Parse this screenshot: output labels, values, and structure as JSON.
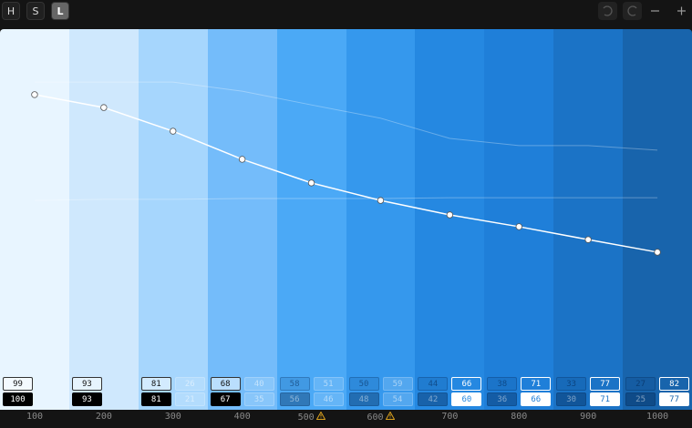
{
  "toolbar": {
    "modes": [
      "H",
      "S",
      "L"
    ],
    "active_mode": 2
  },
  "chart_data": {
    "type": "line",
    "categories": [
      "100",
      "200",
      "300",
      "400",
      "500",
      "600",
      "700",
      "800",
      "900",
      "1000"
    ],
    "colors": [
      "#e8f5ff",
      "#cfe8fd",
      "#a6d6fd",
      "#74bcfa",
      "#4ba9f6",
      "#3598ed",
      "#2588e1",
      "#1f7fd9",
      "#1b73c6",
      "#1864ac"
    ],
    "values": [
      82.8,
      79.4,
      73.2,
      65.8,
      59.6,
      55.0,
      51.2,
      48.1,
      44.7,
      41.4
    ],
    "guides": [
      [
        86.1,
        86.1,
        86.1,
        83.7,
        80.1,
        76.6,
        71.3,
        69.4,
        69.4,
        68.2
      ],
      [
        55.0,
        55.3,
        55.3,
        55.5,
        55.5,
        55.5,
        55.7,
        55.7,
        55.7,
        55.7
      ]
    ],
    "ylim": [
      0,
      100
    ],
    "warnings": [
      false,
      false,
      false,
      false,
      true,
      true,
      false,
      false,
      false,
      false
    ],
    "contrast": [
      {
        "left": [
          99,
          100
        ],
        "active": "left"
      },
      {
        "left": [
          93,
          93
        ],
        "active": "left"
      },
      {
        "left": [
          81,
          81
        ],
        "right": [
          26,
          21
        ],
        "active": "left"
      },
      {
        "left": [
          68,
          67
        ],
        "right": [
          40,
          35
        ],
        "active": "left"
      },
      {
        "left": [
          58,
          56
        ],
        "right": [
          51,
          46
        ]
      },
      {
        "left": [
          50,
          48
        ],
        "right": [
          59,
          54
        ]
      },
      {
        "left": [
          44,
          42
        ],
        "right": [
          66,
          60
        ],
        "active": "right"
      },
      {
        "left": [
          38,
          36
        ],
        "right": [
          71,
          66
        ],
        "active": "right"
      },
      {
        "left": [
          33,
          30
        ],
        "right": [
          77,
          71
        ],
        "active": "right"
      },
      {
        "left": [
          27,
          25
        ],
        "right": [
          82,
          77
        ],
        "active": "right"
      }
    ]
  }
}
